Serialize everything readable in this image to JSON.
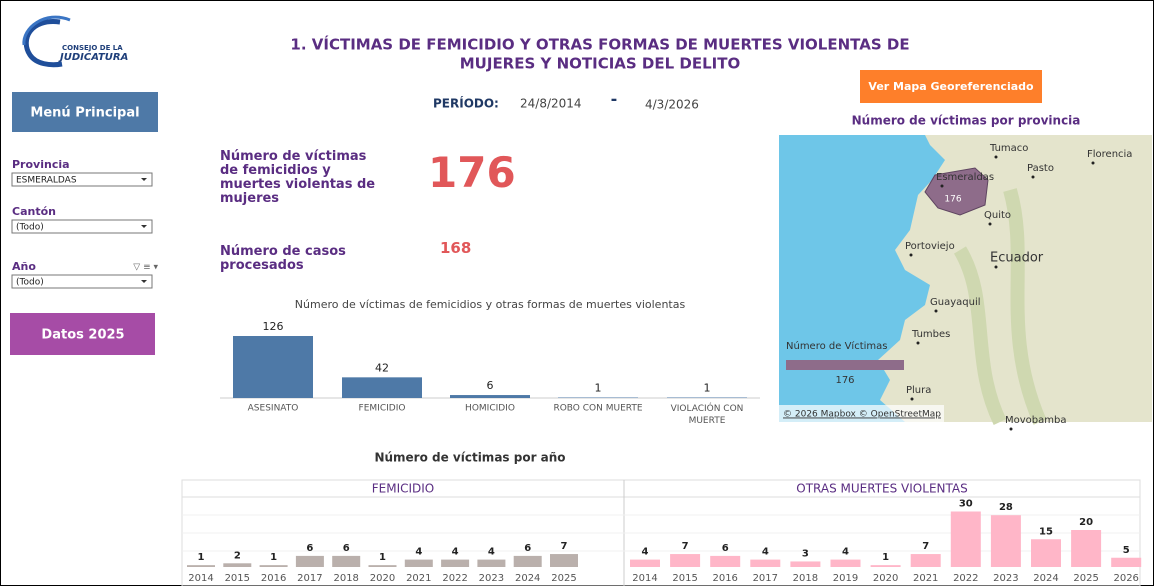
{
  "logo": {
    "line1": "CONSEJO DE LA",
    "line2": "JUDICATURA"
  },
  "title": {
    "line1": "1. VÍCTIMAS DE FEMICIDIO Y OTRAS FORMAS DE MUERTES VIOLENTAS DE",
    "line2": "MUJERES Y NOTICIAS DEL DELITO"
  },
  "sidebar": {
    "menu_button": "Menú Principal",
    "filters": [
      {
        "label": "Provincia",
        "value": "ESMERALDAS"
      },
      {
        "label": "Cantón",
        "value": "(Todo)"
      },
      {
        "label": "Año",
        "value": "(Todo)"
      }
    ],
    "data_button": "Datos 2025"
  },
  "period": {
    "label": "PERÍODO:",
    "start": "24/8/2014",
    "separator": "-",
    "end": "4/3/2026"
  },
  "map_button": "Ver Mapa Georeferenciado",
  "kpis": [
    {
      "label": "Número de víctimas de femicidios y muertes violentas de mujeres",
      "value": 176
    },
    {
      "label": "Número de casos procesados",
      "value": 168
    }
  ],
  "victims_by_type": {
    "type": "bar",
    "title": "Número de víctimas de femicidios y otras formas de muertes violentas",
    "categories": [
      "ASESINATO",
      "FEMICIDIO",
      "HOMICIDIO",
      "ROBO CON MUERTE",
      "VIOLACIÓN CON MUERTE"
    ],
    "values": [
      126,
      42,
      6,
      1,
      1
    ],
    "color": "#4e79a7"
  },
  "map": {
    "title": "Número de víctimas por provincia",
    "labels": [
      "Tumaco",
      "Florencia",
      "Pasto",
      "Esmeraldas",
      "Quito",
      "Portoviejo",
      "Ecuador",
      "Guayaquil",
      "Tumbes",
      "Plura",
      "Movobamba"
    ],
    "value": 176,
    "legend_title": "Número de Víctimas",
    "attribution": "© 2026 Mapbox © OpenStreetMap",
    "color": "#8e6c8a"
  },
  "victims_by_year": {
    "type": "bar",
    "title": "Número de víctimas por año",
    "panels": [
      {
        "name": "FEMICIDIO",
        "color": "#bab0ac",
        "categories": [
          "2014",
          "2015",
          "2016",
          "2017",
          "2018",
          "2020",
          "2021",
          "2022",
          "2023",
          "2024",
          "2025"
        ],
        "values": [
          1,
          2,
          1,
          6,
          6,
          1,
          4,
          4,
          4,
          6,
          7
        ]
      },
      {
        "name": "OTRAS MUERTES VIOLENTAS",
        "color": "#ffb6c8",
        "categories": [
          "2014",
          "2015",
          "2016",
          "2017",
          "2018",
          "2019",
          "2020",
          "2021",
          "2022",
          "2023",
          "2024",
          "2025",
          "2026"
        ],
        "values": [
          4,
          7,
          6,
          4,
          3,
          4,
          1,
          7,
          30,
          28,
          15,
          20,
          5
        ]
      }
    ]
  }
}
